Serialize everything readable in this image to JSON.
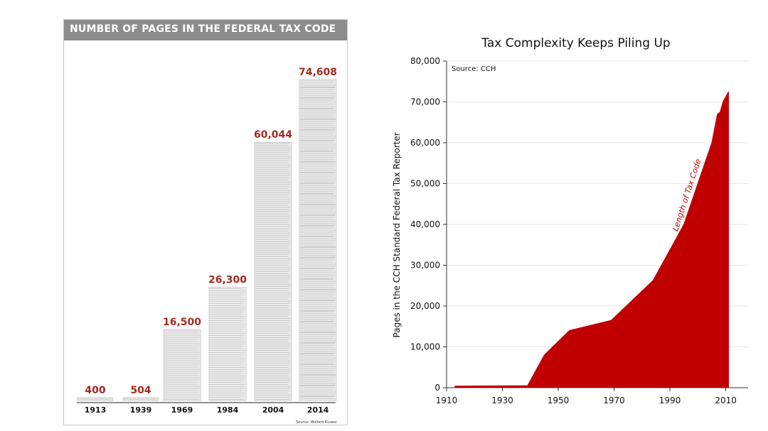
{
  "chart_data": [
    {
      "type": "bar",
      "title": "NUMBER OF PAGES IN THE FEDERAL TAX CODE",
      "categories": [
        "1913",
        "1939",
        "1969",
        "1984",
        "2004",
        "2014"
      ],
      "values": [
        400,
        504,
        16500,
        26300,
        60044,
        74608
      ],
      "value_labels": [
        "400",
        "504",
        "16,500",
        "26,300",
        "60,044",
        "74,608"
      ],
      "source": "Source: Wolters Kluwer",
      "colors": {
        "header_bg": "#8c8c8c",
        "value_text": "#a32a1f",
        "paper": "#e9e9e9"
      }
    },
    {
      "type": "area",
      "title": "Tax Complexity Keeps Piling Up",
      "source": "Source: CCH",
      "ylabel": "Pages in the CCH Standard Federal Tax Reporter",
      "xlabel": "",
      "annotation": "Length of Tax Code",
      "x": [
        1913,
        1939,
        1945,
        1954,
        1969,
        1984,
        1995,
        2000,
        2005,
        2007,
        2008,
        2009,
        2011
      ],
      "y": [
        400,
        504,
        8000,
        14000,
        16500,
        26300,
        40000,
        50000,
        60000,
        67000,
        67500,
        70000,
        72500
      ],
      "xlim": [
        1910,
        2018
      ],
      "ylim": [
        0,
        80000
      ],
      "xticks": [
        "1910",
        "1930",
        "1950",
        "1970",
        "1990",
        "2010"
      ],
      "xtick_values": [
        1910,
        1930,
        1950,
        1970,
        1990,
        2010
      ],
      "yticks": [
        "0",
        "10,000",
        "20,000",
        "30,000",
        "40,000",
        "50,000",
        "60,000",
        "70,000",
        "80,000"
      ],
      "ytick_values": [
        0,
        10000,
        20000,
        30000,
        40000,
        50000,
        60000,
        70000,
        80000
      ],
      "grid": true,
      "colors": {
        "fill": "#c00000",
        "grid": "#e6e6e6"
      }
    }
  ]
}
